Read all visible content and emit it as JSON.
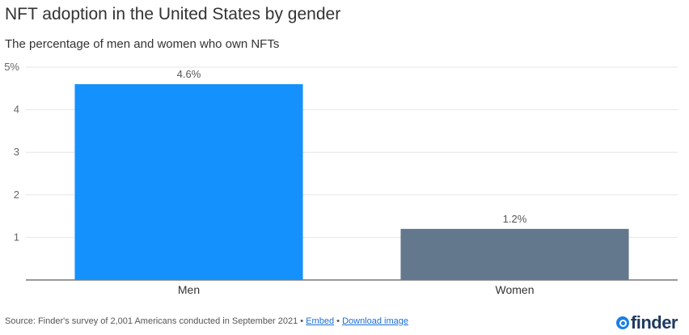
{
  "chart_data": {
    "type": "bar",
    "title": "NFT adoption in the United States by gender",
    "subtitle": "The percentage of men and women who own NFTs",
    "categories": [
      "Men",
      "Women"
    ],
    "values": [
      4.6,
      1.2
    ],
    "data_labels": [
      "4.6%",
      "1.2%"
    ],
    "colors": [
      "#1491fc",
      "#63788d"
    ],
    "ylim": [
      0,
      5
    ],
    "yticks": [
      1,
      2,
      3,
      4,
      5
    ],
    "ytick_labels": [
      "1",
      "2",
      "3",
      "4",
      "5%"
    ],
    "grid": true,
    "xlabel": "",
    "ylabel": ""
  },
  "footer": {
    "source": "Source: Finder's survey of 2,001 Americans conducted in September 2021 •",
    "separator": "•",
    "embed": "Embed",
    "download": "Download image"
  },
  "logo": {
    "text": "finder",
    "color": "#1e3a5f",
    "icon": "finder-logo-icon"
  }
}
